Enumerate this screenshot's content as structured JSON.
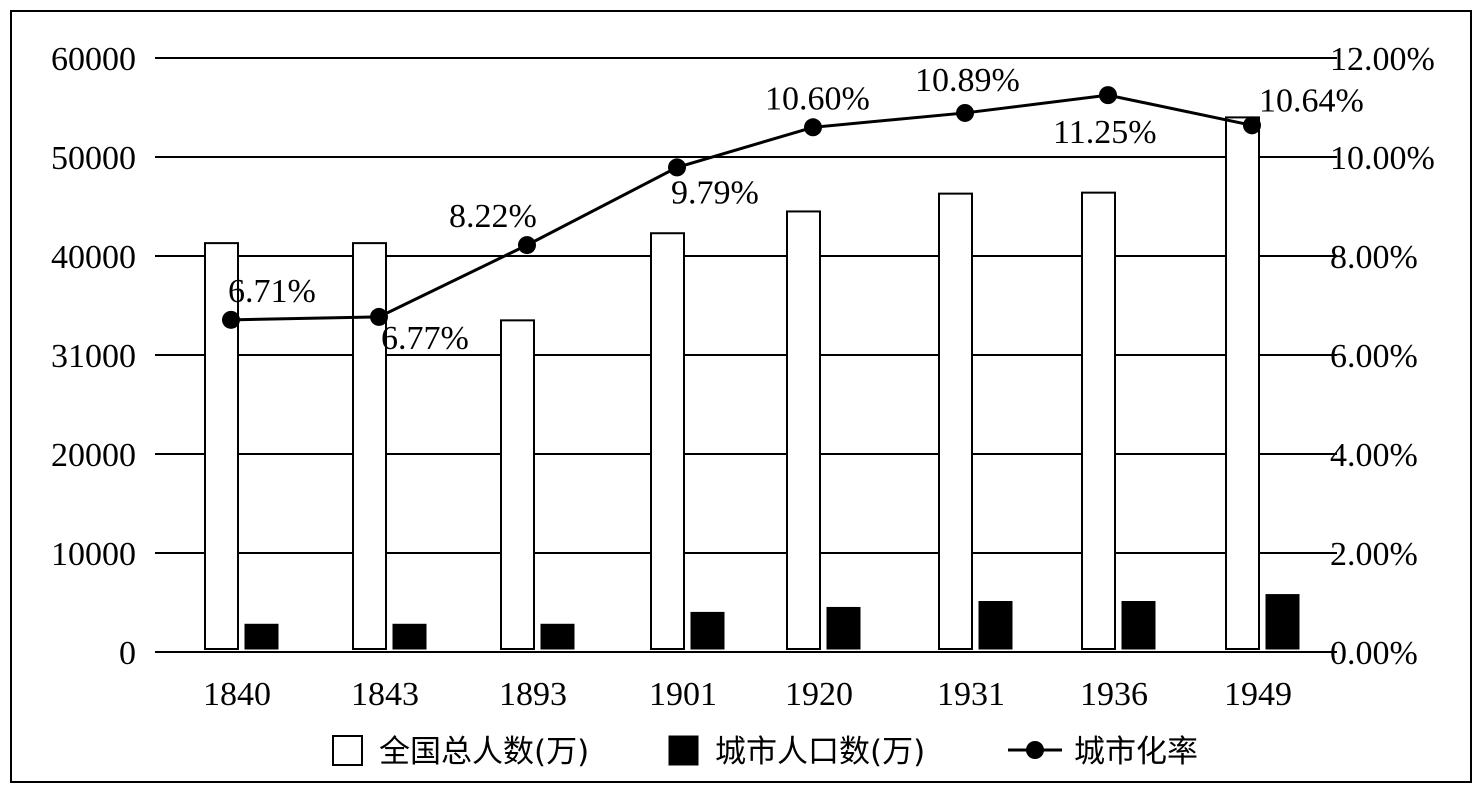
{
  "chart_data": {
    "type": "bar",
    "categories": [
      "1840",
      "1843",
      "1893",
      "1901",
      "1920",
      "1931",
      "1936",
      "1949"
    ],
    "series": [
      {
        "name": "全国总人数(万)",
        "type": "bar",
        "axis": "left",
        "color": "#ffffff",
        "values": [
          41300,
          41300,
          33500,
          42300,
          44500,
          46300,
          46400,
          54000
        ]
      },
      {
        "name": "城市人口数(万)",
        "type": "bar",
        "axis": "left",
        "color": "#000000",
        "values": [
          2800,
          2800,
          2800,
          4000,
          4500,
          5100,
          5100,
          5800
        ]
      },
      {
        "name": "城市化率",
        "type": "line",
        "axis": "right",
        "color": "#000000",
        "values": [
          6.71,
          6.77,
          8.22,
          9.79,
          10.6,
          10.89,
          11.25,
          10.64
        ],
        "labels": [
          "6.71%",
          "6.77%",
          "8.22%",
          "9.79%",
          "10.60%",
          "10.89%",
          "11.25%",
          "10.64%"
        ]
      }
    ],
    "y_left": {
      "ticks": [
        "0",
        "10000",
        "20000",
        "31000",
        "40000",
        "50000",
        "60000"
      ],
      "range": [
        0,
        60000
      ]
    },
    "y_right": {
      "ticks": [
        "0.00%",
        "2.00%",
        "4.00%",
        "6.00%",
        "8.00%",
        "10.00%",
        "12.00%"
      ],
      "range": [
        0,
        12
      ]
    },
    "grid": true,
    "legend_position": "bottom",
    "title": "",
    "xlabel": "",
    "ylabel": ""
  }
}
